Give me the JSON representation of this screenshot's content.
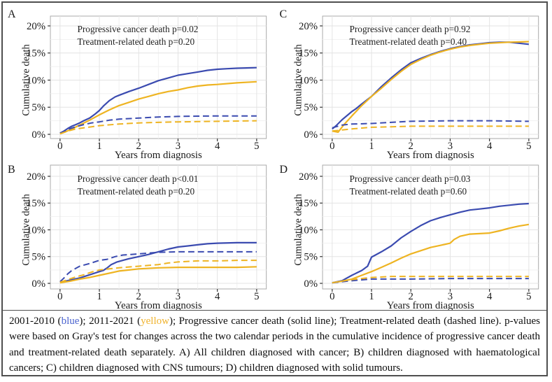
{
  "figure": {
    "type": "cumulative-incidence-figure",
    "panel_labels": [
      "A",
      "B",
      "C",
      "D"
    ]
  },
  "colors": {
    "blue": "#3b4bb0",
    "yellow": "#eeb422",
    "caption_blue": "#4a63cf",
    "caption_yellow": "#f0b32e",
    "grid_major": "#e3e3e3",
    "grid_minor": "#f1f1f1",
    "panel_border": "#a9a9a9",
    "tick": "#333333",
    "text": "#1a1a1a",
    "outer_border": "#4f4f4f"
  },
  "axis": {
    "xlabel": "Years from diagnosis",
    "ylabel": "Cumulative death",
    "xticks": [
      0,
      1,
      2,
      3,
      4,
      5
    ],
    "ytick_labels": [
      "0%",
      "5%",
      "10%",
      "15%",
      "20%"
    ],
    "yticks": [
      0,
      5,
      10,
      15,
      20
    ],
    "xlim": [
      0,
      5
    ],
    "ylim": [
      0,
      20
    ],
    "grid": true,
    "legend": "none"
  },
  "chart_data": [
    {
      "type": "line",
      "label": "A",
      "title_lines": [
        "Progressive cancer death p=0.02",
        "Treatment-related death p=0.20"
      ],
      "xlabel": "Years from diagnosis",
      "ylabel": "Cumulative death",
      "xlim": [
        0,
        5
      ],
      "ylim": [
        0,
        20
      ],
      "series": [
        {
          "name": "2001-2010 progressive cancer death",
          "color": "blue",
          "dash": false,
          "x": [
            0,
            0.1,
            0.2,
            0.3,
            0.4,
            0.5,
            0.6,
            0.75,
            0.9,
            1,
            1.1,
            1.25,
            1.4,
            1.5,
            1.75,
            2,
            2.25,
            2.5,
            2.75,
            3,
            3.25,
            3.5,
            3.75,
            4,
            4.25,
            4.5,
            4.75,
            5
          ],
          "y": [
            0.2,
            0.6,
            1.1,
            1.5,
            1.8,
            2.1,
            2.5,
            3.0,
            3.8,
            4.4,
            5.2,
            6.2,
            6.9,
            7.2,
            7.9,
            8.5,
            9.2,
            9.9,
            10.4,
            10.9,
            11.2,
            11.5,
            11.8,
            12.0,
            12.1,
            12.2,
            12.25,
            12.3
          ]
        },
        {
          "name": "2011-2021 progressive cancer death",
          "color": "yellow",
          "dash": false,
          "x": [
            0,
            0.15,
            0.3,
            0.5,
            0.75,
            1,
            1.25,
            1.5,
            1.75,
            2,
            2.25,
            2.5,
            2.75,
            3,
            3.25,
            3.5,
            3.75,
            4,
            4.5,
            5
          ],
          "y": [
            0.1,
            0.5,
            1.0,
            1.7,
            2.6,
            3.6,
            4.5,
            5.3,
            5.9,
            6.5,
            7.0,
            7.5,
            7.9,
            8.2,
            8.6,
            8.9,
            9.1,
            9.2,
            9.5,
            9.7
          ]
        },
        {
          "name": "2001-2010 treatment-related death",
          "color": "blue",
          "dash": true,
          "x": [
            0,
            0.2,
            0.4,
            0.6,
            0.8,
            1,
            1.25,
            1.5,
            2,
            2.5,
            3,
            3.5,
            4,
            4.5,
            5
          ],
          "y": [
            0.2,
            0.9,
            1.4,
            1.8,
            2.1,
            2.3,
            2.6,
            2.8,
            3.0,
            3.2,
            3.3,
            3.35,
            3.4,
            3.4,
            3.4
          ]
        },
        {
          "name": "2011-2021 treatment-related death",
          "color": "yellow",
          "dash": true,
          "x": [
            0,
            0.2,
            0.4,
            0.6,
            0.8,
            1,
            1.5,
            2,
            2.5,
            3,
            3.5,
            4,
            4.5,
            5
          ],
          "y": [
            0.1,
            0.6,
            1.0,
            1.2,
            1.4,
            1.6,
            1.9,
            2.1,
            2.2,
            2.3,
            2.35,
            2.4,
            2.45,
            2.5
          ]
        }
      ]
    },
    {
      "type": "line",
      "label": "B",
      "title_lines": [
        "Progressive cancer death p<0.01",
        "Treatment-related death p=0.20"
      ],
      "xlabel": "Years from diagnosis",
      "ylabel": "Cumulative death",
      "xlim": [
        0,
        5
      ],
      "ylim": [
        0,
        20
      ],
      "series": [
        {
          "name": "2001-2010 progressive cancer death",
          "color": "blue",
          "dash": false,
          "x": [
            0,
            0.25,
            0.5,
            0.75,
            1,
            1.1,
            1.2,
            1.3,
            1.45,
            1.6,
            1.75,
            2,
            2.25,
            2.5,
            2.75,
            3,
            3.25,
            3.5,
            3.75,
            4,
            4.5,
            5
          ],
          "y": [
            0.2,
            0.6,
            1.0,
            1.6,
            2.2,
            2.4,
            2.9,
            3.5,
            4.0,
            4.3,
            4.6,
            5.0,
            5.4,
            5.9,
            6.4,
            6.8,
            7.0,
            7.2,
            7.4,
            7.5,
            7.6,
            7.6
          ]
        },
        {
          "name": "2011-2021 progressive cancer death",
          "color": "yellow",
          "dash": false,
          "x": [
            0,
            0.25,
            0.5,
            0.75,
            1,
            1.25,
            1.5,
            1.75,
            2,
            2.5,
            3,
            3.5,
            4,
            4.5,
            5
          ],
          "y": [
            0.1,
            0.4,
            0.8,
            1.1,
            1.5,
            1.9,
            2.3,
            2.5,
            2.7,
            2.9,
            3.0,
            3.0,
            3.0,
            3.0,
            3.1
          ]
        },
        {
          "name": "2001-2010 treatment-related death",
          "color": "blue",
          "dash": true,
          "x": [
            0,
            0.1,
            0.2,
            0.3,
            0.5,
            0.75,
            1,
            1.2,
            1.4,
            1.6,
            1.8,
            2,
            2.5,
            3,
            3.5,
            4,
            4.5,
            5
          ],
          "y": [
            0.3,
            1.0,
            1.8,
            2.4,
            3.2,
            3.7,
            4.3,
            4.5,
            5.0,
            5.3,
            5.4,
            5.5,
            5.8,
            5.9,
            5.9,
            5.9,
            5.9,
            5.9
          ]
        },
        {
          "name": "2011-2021 treatment-related death",
          "color": "yellow",
          "dash": true,
          "x": [
            0,
            0.2,
            0.4,
            0.6,
            0.8,
            1,
            1.25,
            1.5,
            2,
            2.5,
            2.75,
            3,
            3.5,
            4,
            4.5,
            5
          ],
          "y": [
            0.2,
            0.7,
            1.2,
            1.6,
            2.1,
            2.5,
            2.7,
            2.9,
            3.2,
            3.5,
            3.8,
            4.0,
            4.2,
            4.2,
            4.3,
            4.3
          ]
        }
      ]
    },
    {
      "type": "line",
      "label": "C",
      "title_lines": [
        "Progressive cancer death p=0.92",
        "Treatment-related death p=0.40"
      ],
      "xlabel": "Years from diagnosis",
      "ylabel": "Cumulative death",
      "xlim": [
        0,
        5
      ],
      "ylim": [
        0,
        20
      ],
      "series": [
        {
          "name": "2001-2010 progressive cancer death",
          "color": "blue",
          "dash": false,
          "x": [
            0,
            0.1,
            0.25,
            0.4,
            0.5,
            0.6,
            0.75,
            1,
            1.25,
            1.5,
            1.75,
            2,
            2.25,
            2.5,
            2.75,
            3,
            3.25,
            3.5,
            3.75,
            4,
            4.25,
            4.5,
            4.75,
            5
          ],
          "y": [
            1.0,
            1.6,
            2.7,
            3.6,
            4.2,
            4.7,
            5.6,
            7.0,
            8.8,
            10.4,
            11.9,
            13.2,
            14.0,
            14.7,
            15.3,
            15.8,
            16.2,
            16.5,
            16.7,
            16.9,
            17.0,
            17.0,
            16.8,
            16.6
          ]
        },
        {
          "name": "2011-2021 progressive cancer death",
          "color": "yellow",
          "dash": false,
          "x": [
            0,
            0.15,
            0.3,
            0.5,
            0.75,
            1,
            1.25,
            1.5,
            1.75,
            2,
            2.25,
            2.5,
            2.75,
            3,
            3.25,
            3.5,
            3.75,
            4,
            4.5,
            5
          ],
          "y": [
            0.6,
            0.4,
            1.8,
            3.4,
            5.3,
            7.0,
            8.5,
            10.1,
            11.6,
            12.9,
            13.8,
            14.6,
            15.2,
            15.7,
            16.1,
            16.4,
            16.6,
            16.8,
            17.0,
            17.1
          ]
        },
        {
          "name": "2001-2010 treatment-related death",
          "color": "blue",
          "dash": true,
          "x": [
            0,
            0.25,
            0.5,
            1,
            1.5,
            2,
            2.5,
            3,
            3.5,
            4,
            4.5,
            5
          ],
          "y": [
            1.2,
            1.7,
            1.9,
            2.0,
            2.2,
            2.4,
            2.45,
            2.5,
            2.5,
            2.5,
            2.45,
            2.4
          ]
        },
        {
          "name": "2011-2021 treatment-related death",
          "color": "yellow",
          "dash": true,
          "x": [
            0,
            0.25,
            0.5,
            1,
            1.5,
            2,
            2.5,
            3,
            4,
            5
          ],
          "y": [
            0.6,
            0.8,
            1.0,
            1.3,
            1.4,
            1.5,
            1.5,
            1.5,
            1.5,
            1.5
          ]
        }
      ]
    },
    {
      "type": "line",
      "label": "D",
      "title_lines": [
        "Progressive cancer death p=0.03",
        "Treatment-related death p=0.60"
      ],
      "xlabel": "Years from diagnosis",
      "ylabel": "Cumulative death",
      "xlim": [
        0,
        5
      ],
      "ylim": [
        0,
        20
      ],
      "series": [
        {
          "name": "2001-2010 progressive cancer death",
          "color": "blue",
          "dash": false,
          "x": [
            0,
            0.25,
            0.5,
            0.75,
            0.9,
            1,
            1.1,
            1.25,
            1.5,
            1.75,
            2,
            2.25,
            2.5,
            2.75,
            3,
            3.25,
            3.5,
            3.75,
            4,
            4.25,
            4.5,
            4.75,
            5
          ],
          "y": [
            0.1,
            0.5,
            1.5,
            2.4,
            3.2,
            4.9,
            5.3,
            5.9,
            7.0,
            8.5,
            9.7,
            10.8,
            11.7,
            12.3,
            12.8,
            13.3,
            13.7,
            13.9,
            14.1,
            14.4,
            14.6,
            14.8,
            14.9
          ]
        },
        {
          "name": "2011-2021 progressive cancer death",
          "color": "yellow",
          "dash": false,
          "x": [
            0,
            0.25,
            0.5,
            0.75,
            1,
            1.25,
            1.5,
            1.75,
            2,
            2.25,
            2.5,
            2.75,
            3,
            3.1,
            3.25,
            3.5,
            3.75,
            4,
            4.25,
            4.5,
            4.75,
            5
          ],
          "y": [
            0.1,
            0.4,
            0.8,
            1.5,
            2.2,
            3.0,
            3.8,
            4.7,
            5.5,
            6.1,
            6.7,
            7.1,
            7.5,
            8.2,
            8.8,
            9.2,
            9.3,
            9.4,
            9.8,
            10.3,
            10.7,
            11.0
          ]
        },
        {
          "name": "2001-2010 treatment-related death",
          "color": "blue",
          "dash": true,
          "x": [
            0,
            0.5,
            1,
            1.5,
            2,
            3,
            4,
            5
          ],
          "y": [
            0.1,
            0.5,
            0.8,
            0.8,
            0.8,
            0.9,
            0.9,
            0.9
          ]
        },
        {
          "name": "2011-2021 treatment-related death",
          "color": "yellow",
          "dash": true,
          "x": [
            0,
            0.25,
            0.5,
            0.75,
            1,
            1.5,
            2,
            3,
            4,
            5
          ],
          "y": [
            0.1,
            0.4,
            0.7,
            0.9,
            1.1,
            1.3,
            1.3,
            1.3,
            1.3,
            1.3
          ]
        }
      ]
    }
  ],
  "caption": {
    "segments": [
      {
        "text": "2001-2010 (",
        "color": ""
      },
      {
        "text": "blue",
        "color": "#4a63cf"
      },
      {
        "text": "); 2011-2021 (",
        "color": ""
      },
      {
        "text": "yellow",
        "color": "#f0b32e"
      },
      {
        "text": "); Progressive cancer death (solid line); Treatment-related death (dashed line). p-values were based on Gray's test for changes across the two calendar periods in the cumulative incidence of progressive cancer death and treatment-related death separately. A) All children diagnosed with cancer; B) children diagnosed with haematological cancers; C) children diagnosed with CNS tumours; D) children diagnosed with solid tumours.",
        "color": ""
      }
    ]
  }
}
